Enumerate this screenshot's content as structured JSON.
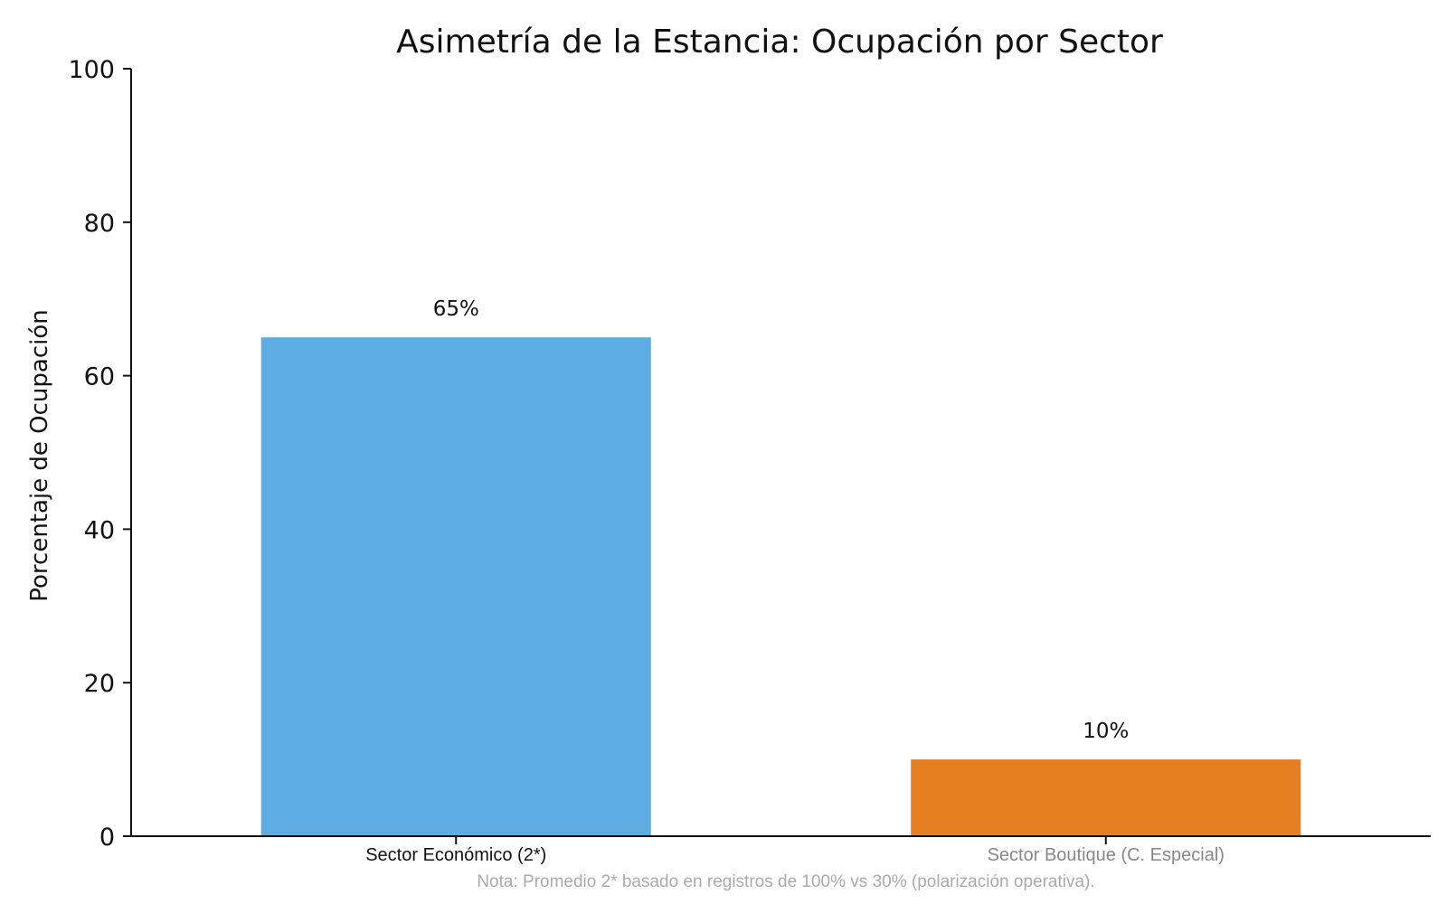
{
  "chart_data": {
    "type": "bar",
    "title": "Asimetría de la Estancia: Ocupación por Sector",
    "xlabel": "",
    "ylabel": "Porcentaje de Ocupación",
    "ylim": [
      0,
      100
    ],
    "yticks": [
      0,
      20,
      40,
      60,
      80,
      100
    ],
    "categories": [
      "Sector Económico (2*)",
      "Sector Boutique (C. Especial)"
    ],
    "values": [
      65,
      10
    ],
    "value_labels": [
      "65%",
      "10%"
    ],
    "colors": [
      "#5dade2",
      "#e67e22"
    ],
    "category_label_colors": [
      "#111111",
      "#888888"
    ],
    "grid": false,
    "legend": false,
    "note": "Nota: Promedio 2* basado en registros de 100% vs 30% (polarización operativa).",
    "note_color": "#aaaaaa"
  }
}
